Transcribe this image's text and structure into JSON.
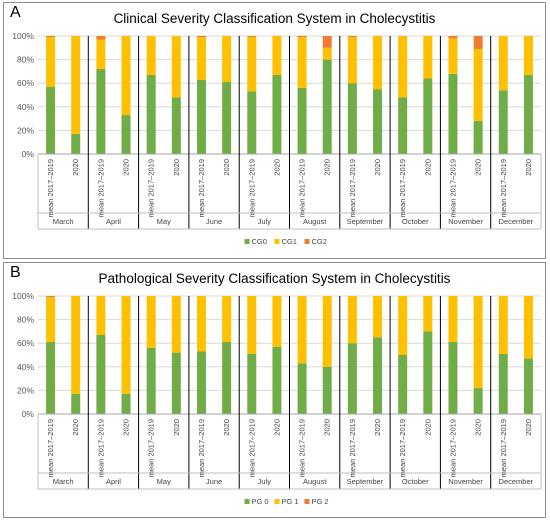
{
  "chart_data": [
    {
      "type": "bar",
      "stacked": true,
      "panel_label": "A",
      "title": "Clinical Severity Classification System in Cholecystitis",
      "months": [
        "March",
        "April",
        "May",
        "June",
        "July",
        "August",
        "September",
        "October",
        "November",
        "December"
      ],
      "categories": [
        "mean 2017–2019",
        "2020",
        "mean 2017–2019",
        "2020",
        "mean 2017–2019",
        "2020",
        "mean 2017–2019",
        "2020",
        "mean 2017–2019",
        "2020",
        "mean 2017–2019",
        "2020",
        "mean 2017–2019",
        "2020",
        "mean 2017–2019",
        "2020",
        "mean 2017–2019",
        "2020",
        "mean 2017–2019",
        "2020"
      ],
      "yticks": [
        "0%",
        "20%",
        "40%",
        "60%",
        "80%",
        "100%"
      ],
      "ylim": [
        0,
        100
      ],
      "grid": true,
      "legend_position": "bottom",
      "series": [
        {
          "name": "CG0",
          "color": "#70ad47",
          "values": [
            57,
            17,
            72,
            33,
            67,
            48,
            63,
            61,
            53,
            67,
            56,
            80,
            60,
            55,
            48,
            64,
            68,
            28,
            54,
            67
          ]
        },
        {
          "name": "CG1",
          "color": "#ffc000",
          "values": [
            42,
            83,
            25,
            67,
            33,
            52,
            36,
            39,
            46,
            33,
            43,
            10,
            39,
            45,
            52,
            36,
            30,
            61,
            46,
            33
          ]
        },
        {
          "name": "CG2",
          "color": "#ed7d31",
          "values": [
            1,
            0,
            3,
            0,
            0,
            0,
            1,
            0,
            1,
            0,
            1,
            10,
            1,
            0,
            0,
            0,
            2,
            11,
            0,
            0
          ]
        }
      ]
    },
    {
      "type": "bar",
      "stacked": true,
      "panel_label": "B",
      "title": "Pathological Severity Classification System in Cholecystitis",
      "months": [
        "March",
        "April",
        "May",
        "June",
        "July",
        "August",
        "September",
        "October",
        "November",
        "December"
      ],
      "categories": [
        "mean 2017–2019",
        "2020",
        "mean 2017–2019",
        "2020",
        "mean 2017–2019",
        "2020",
        "mean 2017–2019",
        "2020",
        "mean 2017–2019",
        "2020",
        "mean 2017–2019",
        "2020",
        "mean 2017–2019",
        "2020",
        "mean 2017–2019",
        "2020",
        "mean 2017–2019",
        "2020",
        "mean 2017–2019",
        "2020"
      ],
      "yticks": [
        "0%",
        "20%",
        "40%",
        "60%",
        "80%",
        "100%"
      ],
      "ylim": [
        0,
        100
      ],
      "grid": true,
      "legend_position": "bottom",
      "series": [
        {
          "name": "PG 0",
          "color": "#70ad47",
          "values": [
            61,
            17,
            67,
            17,
            56,
            52,
            53,
            61,
            51,
            57,
            43,
            40,
            60,
            65,
            50,
            70,
            61,
            22,
            51,
            47
          ]
        },
        {
          "name": "PG 1",
          "color": "#ffc000",
          "values": [
            38,
            83,
            33,
            83,
            44,
            48,
            47,
            39,
            49,
            43,
            57,
            60,
            40,
            35,
            50,
            30,
            39,
            78,
            49,
            53
          ]
        },
        {
          "name": "PG 2",
          "color": "#ed7d31",
          "values": [
            1,
            0,
            0,
            0,
            0,
            0,
            0,
            0,
            0,
            0,
            0,
            0,
            0,
            0,
            0,
            0,
            0,
            0,
            0,
            0
          ]
        }
      ]
    }
  ]
}
